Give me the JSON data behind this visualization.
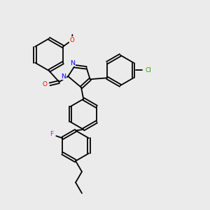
{
  "background_color": "#ebebeb",
  "bond_color": "#000000",
  "atom_colors": {
    "N": "#0000ff",
    "O": "#ff0000",
    "F": "#ff00aa",
    "Cl": "#00bb00",
    "C": "#000000"
  },
  "figsize": [
    3.0,
    3.0
  ],
  "dpi": 100
}
